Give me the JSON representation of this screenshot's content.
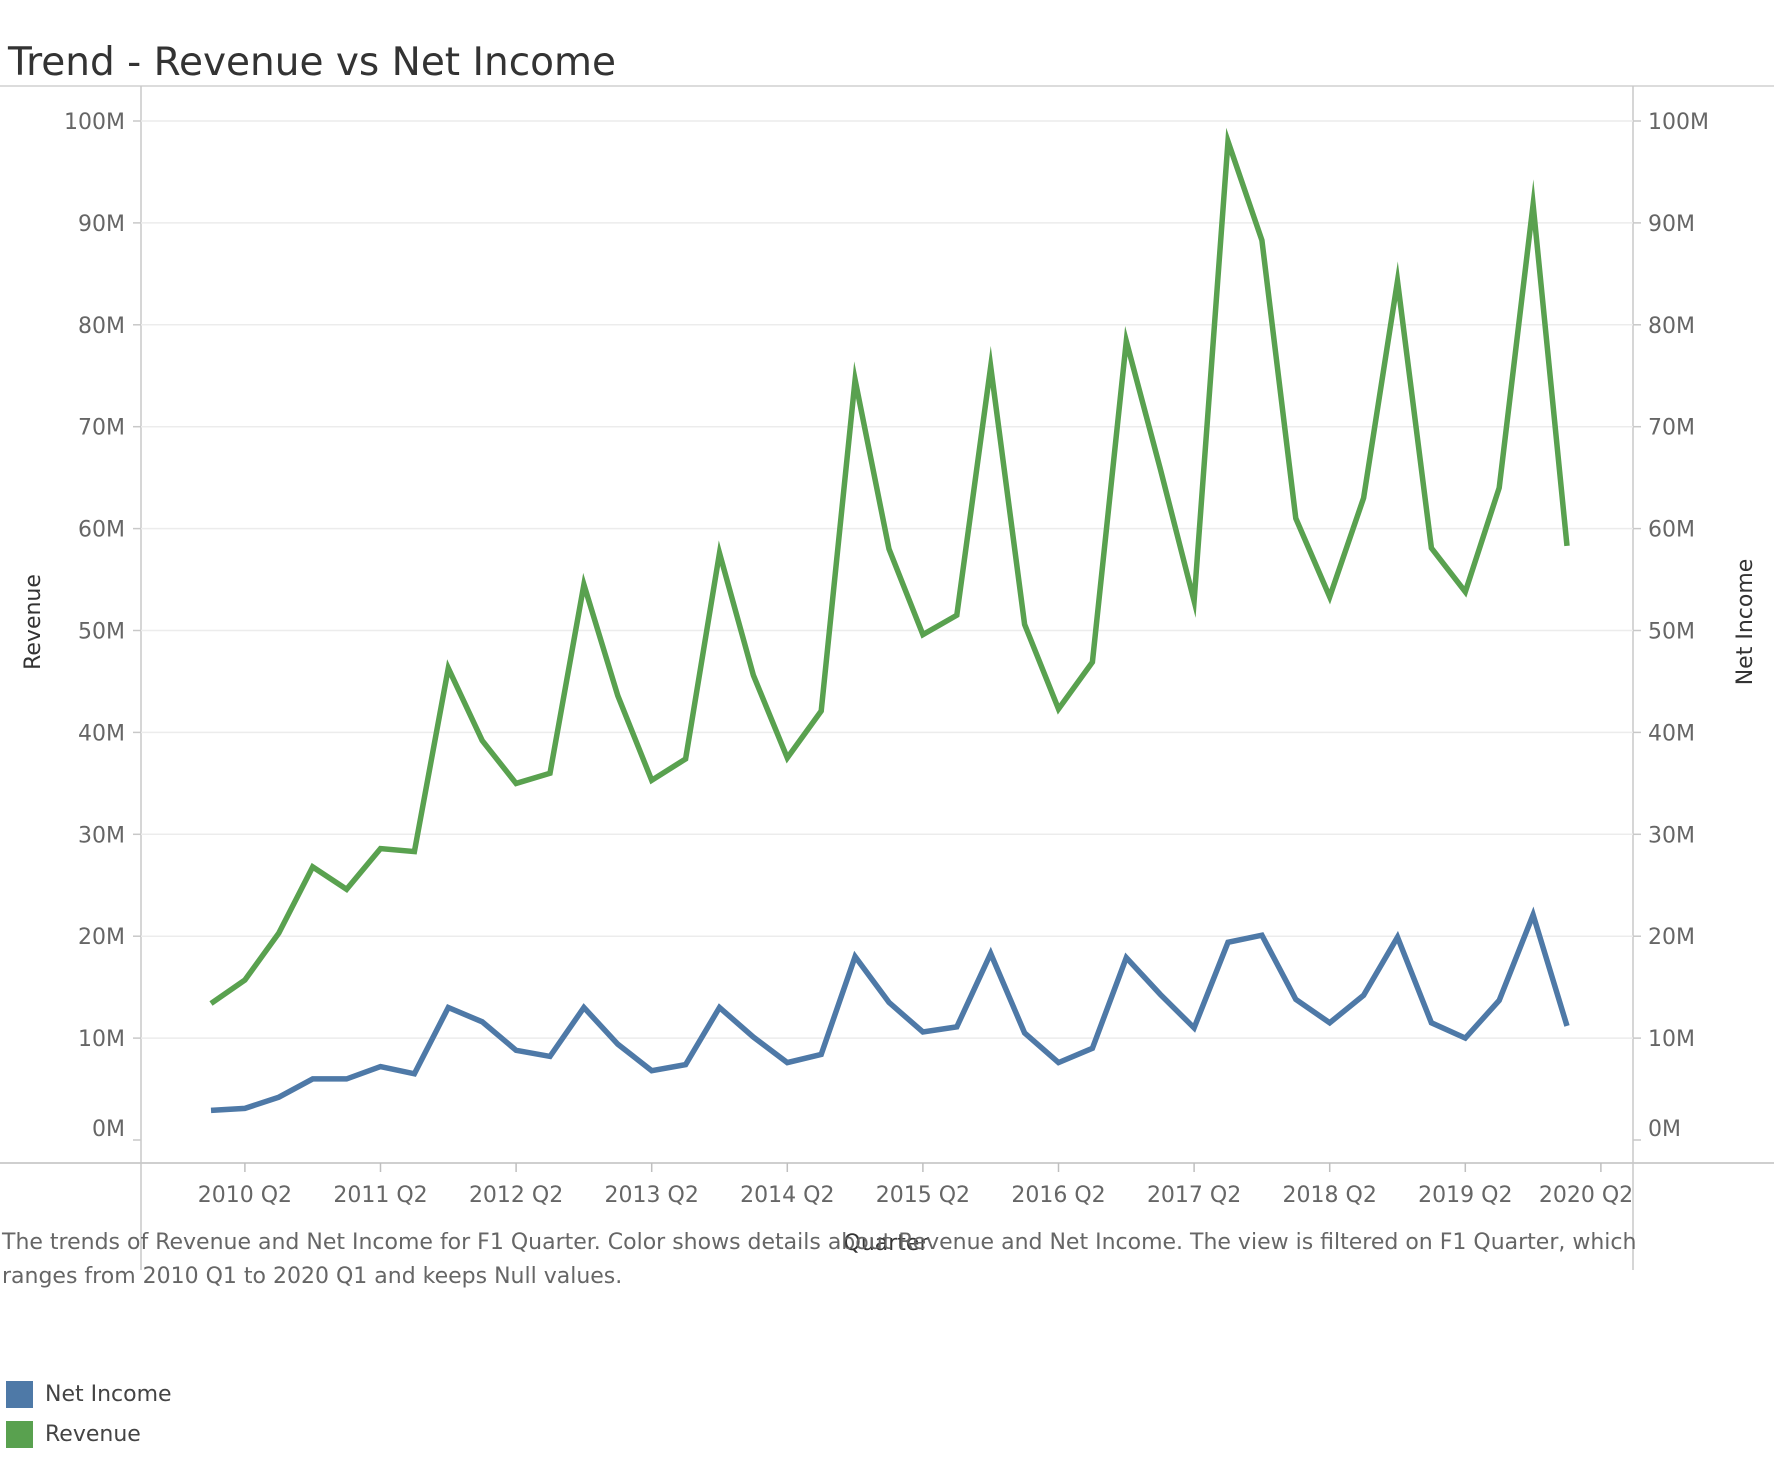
{
  "title": "Trend - Revenue vs Net Income",
  "caption": "The trends of Revenue and Net Income for F1 Quarter.  Color shows details about Revenue and Net Income. The view is filtered on F1 Quarter, which ranges from 2010 Q1 to 2020 Q1 and keeps Null values.",
  "colors": {
    "net_income": "#4e79a7",
    "revenue": "#59a14f"
  },
  "legend": [
    {
      "label": "Net Income",
      "color": "#4e79a7"
    },
    {
      "label": "Revenue",
      "color": "#59a14f"
    }
  ],
  "chart_data": {
    "type": "line",
    "xlabel": "Quarter",
    "ylabel": "Revenue",
    "ylabel_right": "Net Income",
    "ylim": [
      0,
      100
    ],
    "y_unit": "M",
    "yticks": [
      "0M",
      "10M",
      "20M",
      "30M",
      "40M",
      "50M",
      "60M",
      "70M",
      "80M",
      "90M",
      "100M"
    ],
    "xticks": [
      "2010 Q2",
      "2011 Q2",
      "2012 Q2",
      "2013 Q2",
      "2014 Q2",
      "2015 Q2",
      "2016 Q2",
      "2017 Q2",
      "2018 Q2",
      "2019 Q2",
      "2020 Q2"
    ],
    "x": [
      "2010 Q1",
      "2010 Q2",
      "2010 Q3",
      "2010 Q4",
      "2011 Q1",
      "2011 Q2",
      "2011 Q3",
      "2011 Q4",
      "2012 Q1",
      "2012 Q2",
      "2012 Q3",
      "2012 Q4",
      "2013 Q1",
      "2013 Q2",
      "2013 Q3",
      "2013 Q4",
      "2014 Q1",
      "2014 Q2",
      "2014 Q3",
      "2014 Q4",
      "2015 Q1",
      "2015 Q2",
      "2015 Q3",
      "2015 Q4",
      "2016 Q1",
      "2016 Q2",
      "2016 Q3",
      "2016 Q4",
      "2017 Q1",
      "2017 Q2",
      "2017 Q3",
      "2017 Q4",
      "2018 Q1",
      "2018 Q2",
      "2018 Q3",
      "2018 Q4",
      "2019 Q1",
      "2019 Q2",
      "2019 Q3",
      "2019 Q4",
      "2020 Q1"
    ],
    "grid": true,
    "legend_position": "bottom-left",
    "series": [
      {
        "name": "Revenue",
        "axis": "left",
        "values": [
          13.4,
          15.7,
          20.3,
          26.8,
          24.6,
          28.6,
          28.3,
          46.3,
          39.2,
          35.0,
          36.0,
          54.5,
          43.6,
          35.3,
          37.4,
          57.6,
          45.6,
          37.5,
          42.1,
          74.6,
          58.0,
          49.6,
          51.5,
          75.9,
          50.6,
          42.3,
          46.9,
          78.4,
          65.9,
          52.9,
          98.0,
          88.3,
          61.0,
          53.3,
          63.0,
          84.3,
          58.1,
          53.8,
          64.0,
          91.8,
          58.3
        ]
      },
      {
        "name": "Net Income",
        "axis": "right",
        "values": [
          2.9,
          3.1,
          4.2,
          6.0,
          6.0,
          7.2,
          6.5,
          13.0,
          11.6,
          8.8,
          8.2,
          13.0,
          9.4,
          6.8,
          7.4,
          13.0,
          10.1,
          7.6,
          8.4,
          18.0,
          13.5,
          10.6,
          11.1,
          18.3,
          10.5,
          7.6,
          9.0,
          17.9,
          14.3,
          11.0,
          19.4,
          20.1,
          13.8,
          11.5,
          14.2,
          19.9,
          11.5,
          10.0,
          13.7,
          22.1,
          11.2
        ]
      }
    ]
  }
}
